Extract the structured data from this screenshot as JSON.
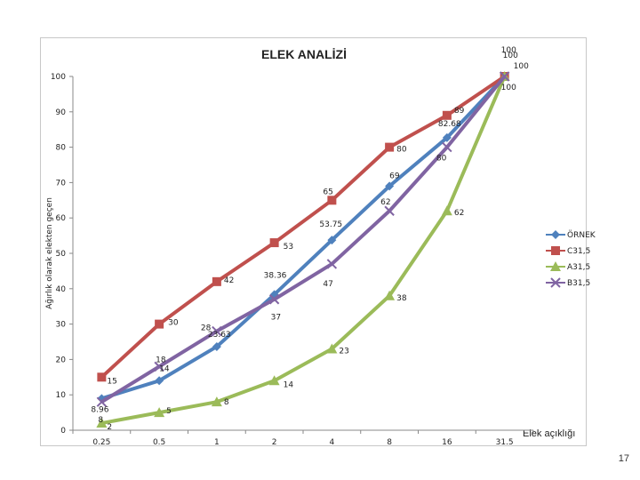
{
  "page_number": "17",
  "chart_data": {
    "type": "line",
    "title": "ELEK ANALİZİ",
    "xlabel": "Elek açıklığı",
    "ylabel": "Ağırlık olarak elekten geçen",
    "categories": [
      "0.25",
      "0.5",
      "1",
      "2",
      "4",
      "8",
      "16",
      "31.5"
    ],
    "ylim": [
      0,
      100
    ],
    "yticks": [
      0,
      10,
      20,
      30,
      40,
      50,
      60,
      70,
      80,
      90,
      100
    ],
    "grid": false,
    "legend_position": "right",
    "series": [
      {
        "name": "ÖRNEK",
        "color": "#4F81BD",
        "marker": "diamond",
        "values": [
          8.96,
          14,
          23.63,
          38.36,
          53.75,
          69,
          82.68,
          100
        ]
      },
      {
        "name": "C31,5",
        "color": "#C0504D",
        "marker": "square",
        "values": [
          15,
          30,
          42,
          53,
          65,
          80,
          89,
          100
        ]
      },
      {
        "name": "A31,5",
        "color": "#9BBB59",
        "marker": "triangle",
        "values": [
          2,
          5,
          8,
          14,
          23,
          38,
          62,
          100
        ]
      },
      {
        "name": "B31,5",
        "color": "#8064A2",
        "marker": "x",
        "values": [
          8,
          18,
          28,
          37,
          47,
          62,
          80,
          100
        ]
      }
    ],
    "data_labels": [
      {
        "text": "8.96",
        "series": 0,
        "index": 0
      },
      {
        "text": "14",
        "series": 0,
        "index": 1
      },
      {
        "text": "23.63",
        "series": 0,
        "index": 2
      },
      {
        "text": "38.36",
        "series": 0,
        "index": 3
      },
      {
        "text": "53.75",
        "series": 0,
        "index": 4
      },
      {
        "text": "69",
        "series": 0,
        "index": 5
      },
      {
        "text": "82.68",
        "series": 0,
        "index": 6
      },
      {
        "text": "100",
        "series": 0,
        "index": 7
      },
      {
        "text": "15",
        "series": 1,
        "index": 0
      },
      {
        "text": "30",
        "series": 1,
        "index": 1
      },
      {
        "text": "42",
        "series": 1,
        "index": 2
      },
      {
        "text": "53",
        "series": 1,
        "index": 3
      },
      {
        "text": "65",
        "series": 1,
        "index": 4
      },
      {
        "text": "80",
        "series": 1,
        "index": 5
      },
      {
        "text": "89",
        "series": 1,
        "index": 6
      },
      {
        "text": "100",
        "series": 1,
        "index": 7
      },
      {
        "text": "2",
        "series": 2,
        "index": 0
      },
      {
        "text": "5",
        "series": 2,
        "index": 1
      },
      {
        "text": "8",
        "series": 2,
        "index": 2
      },
      {
        "text": "14",
        "series": 2,
        "index": 3
      },
      {
        "text": "23",
        "series": 2,
        "index": 4
      },
      {
        "text": "38",
        "series": 2,
        "index": 5
      },
      {
        "text": "62",
        "series": 2,
        "index": 6
      },
      {
        "text": "100",
        "series": 2,
        "index": 7
      },
      {
        "text": "8",
        "series": 3,
        "index": 0
      },
      {
        "text": "18",
        "series": 3,
        "index": 1
      },
      {
        "text": "28",
        "series": 3,
        "index": 2
      },
      {
        "text": "37",
        "series": 3,
        "index": 3
      },
      {
        "text": "47",
        "series": 3,
        "index": 4
      },
      {
        "text": "62",
        "series": 3,
        "index": 5
      },
      {
        "text": "80",
        "series": 3,
        "index": 6
      },
      {
        "text": "100",
        "series": 3,
        "index": 7
      }
    ]
  }
}
